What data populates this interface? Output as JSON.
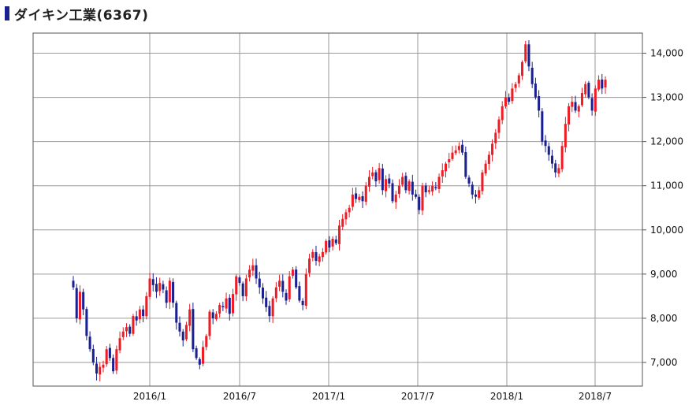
{
  "title": "ダイキン工業(6367)",
  "colors": {
    "up": "#ee1c25",
    "down": "#1a2090",
    "grid": "#9a9a9a",
    "frame": "#555555"
  },
  "chart_data": {
    "type": "candlestick",
    "title": "ダイキン工業(6367)",
    "y_ticks": [
      "7,000",
      "8,000",
      "9,000",
      "10,000",
      "11,000",
      "12,000",
      "13,000",
      "14,000"
    ],
    "y_tick_values": [
      7000,
      8000,
      9000,
      10000,
      11000,
      12000,
      13000,
      14000
    ],
    "x_ticks": [
      "2016/1",
      "2016/7",
      "2017/1",
      "2017/7",
      "2018/1",
      "2018/7"
    ],
    "ylim": [
      6500,
      14500
    ],
    "grid": true,
    "series": {
      "weekly_close": [
        8700,
        8000,
        8600,
        8200,
        7600,
        7300,
        7000,
        6750,
        6900,
        6950,
        7300,
        7100,
        6800,
        7300,
        7550,
        7700,
        7800,
        7650,
        8050,
        7950,
        8200,
        8050,
        8500,
        8900,
        8750,
        8600,
        8800,
        8650,
        8350,
        8850,
        8350,
        7900,
        7700,
        7500,
        7850,
        8200,
        7300,
        7100,
        6950,
        7350,
        7600,
        8150,
        8000,
        8100,
        8300,
        8250,
        8450,
        8100,
        8550,
        8950,
        8800,
        8500,
        8900,
        9100,
        9200,
        8900,
        8700,
        8450,
        8250,
        8050,
        8450,
        8700,
        8850,
        8600,
        8400,
        8950,
        9100,
        8700,
        8400,
        8300,
        9000,
        9350,
        9500,
        9300,
        9400,
        9500,
        9750,
        9600,
        9800,
        9700,
        10100,
        10250,
        10400,
        10500,
        10800,
        10700,
        10750,
        10650,
        11000,
        11200,
        11300,
        11100,
        11400,
        10900,
        11150,
        11050,
        10650,
        10800,
        11000,
        11200,
        10900,
        11100,
        10800,
        10750,
        10450,
        11000,
        10850,
        10900,
        11000,
        10950,
        11200,
        11350,
        11500,
        11600,
        11750,
        11800,
        11900,
        11750,
        11200,
        11050,
        10800,
        10750,
        10900,
        11300,
        11500,
        11700,
        11950,
        12200,
        12500,
        12800,
        13000,
        12900,
        13200,
        13300,
        13500,
        13800,
        14200,
        13700,
        13300,
        13000,
        12700,
        12000,
        11900,
        11700,
        11500,
        11300,
        11400,
        11900,
        12400,
        12800,
        12900,
        12700,
        12800,
        13100,
        13300,
        13000,
        12700,
        13200,
        13400,
        13200,
        13400
      ]
    }
  }
}
